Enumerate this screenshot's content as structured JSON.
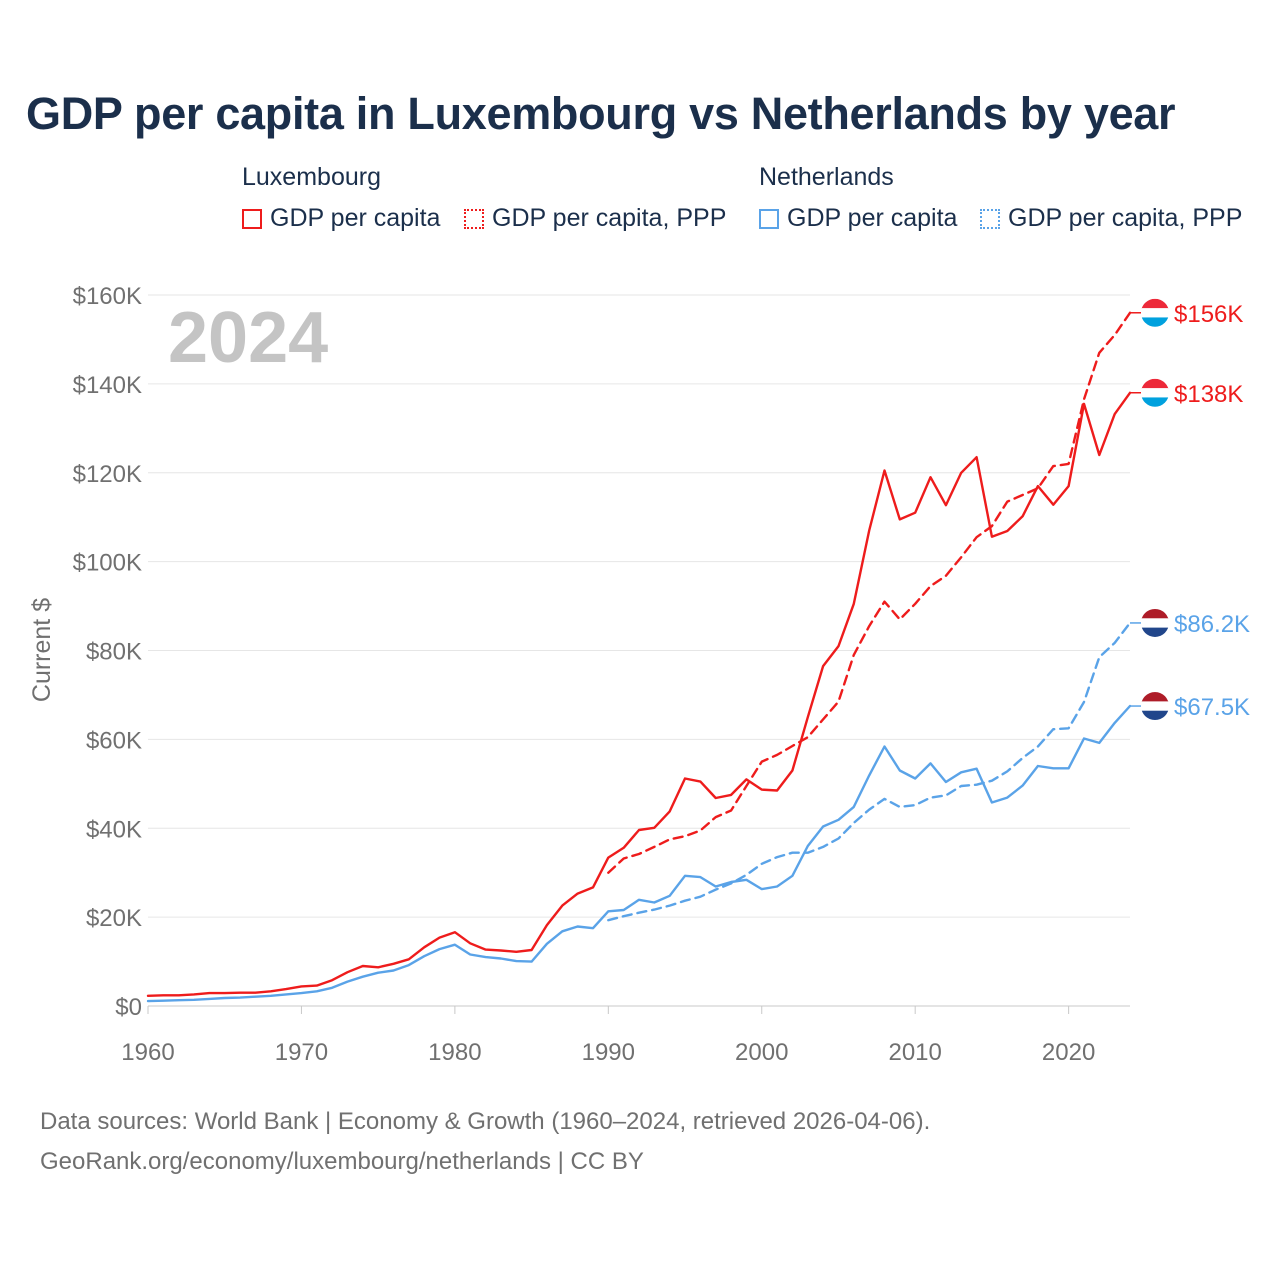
{
  "title": "GDP per capita in Luxembourg vs Netherlands by year",
  "legend": {
    "groups": [
      {
        "name": "Luxembourg",
        "color": "#ee1c1c",
        "items": [
          {
            "label": "GDP per capita",
            "style": "solid"
          },
          {
            "label": "GDP per capita, PPP",
            "style": "dotted"
          }
        ]
      },
      {
        "name": "Netherlands",
        "color": "#5aa3e8",
        "items": [
          {
            "label": "GDP per capita",
            "style": "solid"
          },
          {
            "label": "GDP per capita, PPP",
            "style": "dotted"
          }
        ]
      }
    ]
  },
  "year_label": "2024",
  "sources": {
    "line1": "Data sources: World Bank | Economy & Growth (1960–2024, retrieved 2026-04-06).",
    "line2": "GeoRank.org/economy/luxembourg/netherlands | CC BY"
  },
  "chart_data": {
    "type": "line",
    "title": "GDP per capita in Luxembourg vs Netherlands by year",
    "xlabel": "",
    "ylabel": "Current $",
    "xlim": [
      1960,
      2024
    ],
    "ylim": [
      0,
      160000
    ],
    "x_ticks": [
      1960,
      1970,
      1980,
      1990,
      2000,
      2010,
      2020
    ],
    "y_ticks": [
      0,
      20000,
      40000,
      60000,
      80000,
      100000,
      120000,
      140000,
      160000
    ],
    "y_tick_labels": [
      "$0",
      "$20K",
      "$40K",
      "$60K",
      "$80K",
      "$100K",
      "$120K",
      "$140K",
      "$160K"
    ],
    "grid": true,
    "series": [
      {
        "name": "Luxembourg GDP per capita",
        "country": "Luxembourg",
        "style": "solid",
        "color": "#ee1c1c",
        "end_label": "$138K",
        "x": [
          1960,
          1961,
          1962,
          1963,
          1964,
          1965,
          1966,
          1967,
          1968,
          1969,
          1970,
          1971,
          1972,
          1973,
          1974,
          1975,
          1976,
          1977,
          1978,
          1979,
          1980,
          1981,
          1982,
          1983,
          1984,
          1985,
          1986,
          1987,
          1988,
          1989,
          1990,
          1991,
          1992,
          1993,
          1994,
          1995,
          1996,
          1997,
          1998,
          1999,
          2000,
          2001,
          2002,
          2003,
          2004,
          2005,
          2006,
          2007,
          2008,
          2009,
          2010,
          2011,
          2012,
          2013,
          2014,
          2015,
          2016,
          2017,
          2018,
          2019,
          2020,
          2021,
          2022,
          2023,
          2024
        ],
        "values": [
          2300,
          2400,
          2400,
          2600,
          2900,
          2900,
          3000,
          3000,
          3300,
          3800,
          4400,
          4600,
          5800,
          7600,
          9000,
          8700,
          9500,
          10500,
          13200,
          15400,
          16600,
          14100,
          12700,
          12500,
          12200,
          12600,
          18200,
          22600,
          25300,
          26700,
          33400,
          35600,
          39600,
          40100,
          43800,
          51200,
          50500,
          46800,
          47500,
          51000,
          48700,
          48500,
          53000,
          65000,
          76500,
          81000,
          90500,
          107000,
          120500,
          109500,
          111000,
          119000,
          112700,
          120000,
          123500,
          105600,
          106900,
          110200,
          117000,
          112800,
          117000,
          135500,
          124000,
          133200,
          138000
        ]
      },
      {
        "name": "Luxembourg GDP per capita, PPP",
        "country": "Luxembourg",
        "style": "dashed",
        "color": "#ee1c1c",
        "end_label": "$156K",
        "x": [
          1990,
          1991,
          1992,
          1993,
          1994,
          1995,
          1996,
          1997,
          1998,
          1999,
          2000,
          2001,
          2002,
          2003,
          2004,
          2005,
          2006,
          2007,
          2008,
          2009,
          2010,
          2011,
          2012,
          2013,
          2014,
          2015,
          2016,
          2017,
          2018,
          2019,
          2020,
          2021,
          2022,
          2023,
          2024
        ],
        "values": [
          30000,
          33200,
          34200,
          35800,
          37500,
          38200,
          39500,
          42500,
          44000,
          49500,
          55000,
          56500,
          58500,
          60500,
          64500,
          68500,
          79000,
          85500,
          91000,
          87000,
          90500,
          94500,
          96800,
          101000,
          105500,
          108000,
          113500,
          115000,
          116500,
          121500,
          122000,
          136500,
          147000,
          151000,
          156000
        ]
      },
      {
        "name": "Netherlands GDP per capita",
        "country": "Netherlands",
        "style": "solid",
        "color": "#5aa3e8",
        "end_label": "$67.5K",
        "x": [
          1960,
          1961,
          1962,
          1963,
          1964,
          1965,
          1966,
          1967,
          1968,
          1969,
          1970,
          1971,
          1972,
          1973,
          1974,
          1975,
          1976,
          1977,
          1978,
          1979,
          1980,
          1981,
          1982,
          1983,
          1984,
          1985,
          1986,
          1987,
          1988,
          1989,
          1990,
          1991,
          1992,
          1993,
          1994,
          1995,
          1996,
          1997,
          1998,
          1999,
          2000,
          2001,
          2002,
          2003,
          2004,
          2005,
          2006,
          2007,
          2008,
          2009,
          2010,
          2011,
          2012,
          2013,
          2014,
          2015,
          2016,
          2017,
          2018,
          2019,
          2020,
          2021,
          2022,
          2023,
          2024
        ],
        "values": [
          1100,
          1200,
          1300,
          1400,
          1600,
          1800,
          1900,
          2100,
          2300,
          2600,
          2900,
          3300,
          4100,
          5500,
          6600,
          7500,
          8000,
          9200,
          11200,
          12800,
          13800,
          11600,
          11000,
          10700,
          10100,
          10000,
          14000,
          16800,
          17900,
          17500,
          21300,
          21600,
          23900,
          23300,
          24800,
          29300,
          29000,
          26900,
          27900,
          28400,
          26300,
          26900,
          29300,
          36000,
          40400,
          41900,
          44800,
          51900,
          58400,
          53000,
          51200,
          54600,
          50400,
          52600,
          53400,
          45800,
          46900,
          49600,
          54000,
          53500,
          53500,
          60200,
          59200,
          63700,
          67500
        ]
      },
      {
        "name": "Netherlands GDP per capita, PPP",
        "country": "Netherlands",
        "style": "dashed",
        "color": "#5aa3e8",
        "end_label": "$86.2K",
        "x": [
          1990,
          1991,
          1992,
          1993,
          1994,
          1995,
          1996,
          1997,
          1998,
          1999,
          2000,
          2001,
          2002,
          2003,
          2004,
          2005,
          2006,
          2007,
          2008,
          2009,
          2010,
          2011,
          2012,
          2013,
          2014,
          2015,
          2016,
          2017,
          2018,
          2019,
          2020,
          2021,
          2022,
          2023,
          2024
        ],
        "values": [
          19300,
          20200,
          21000,
          21700,
          22600,
          23700,
          24600,
          26200,
          27600,
          29500,
          32000,
          33500,
          34500,
          34500,
          35800,
          37700,
          41200,
          44200,
          46600,
          44800,
          45200,
          46900,
          47400,
          49500,
          49800,
          50700,
          52800,
          55800,
          58400,
          62300,
          62500,
          68400,
          78500,
          81700,
          86200
        ]
      }
    ]
  }
}
